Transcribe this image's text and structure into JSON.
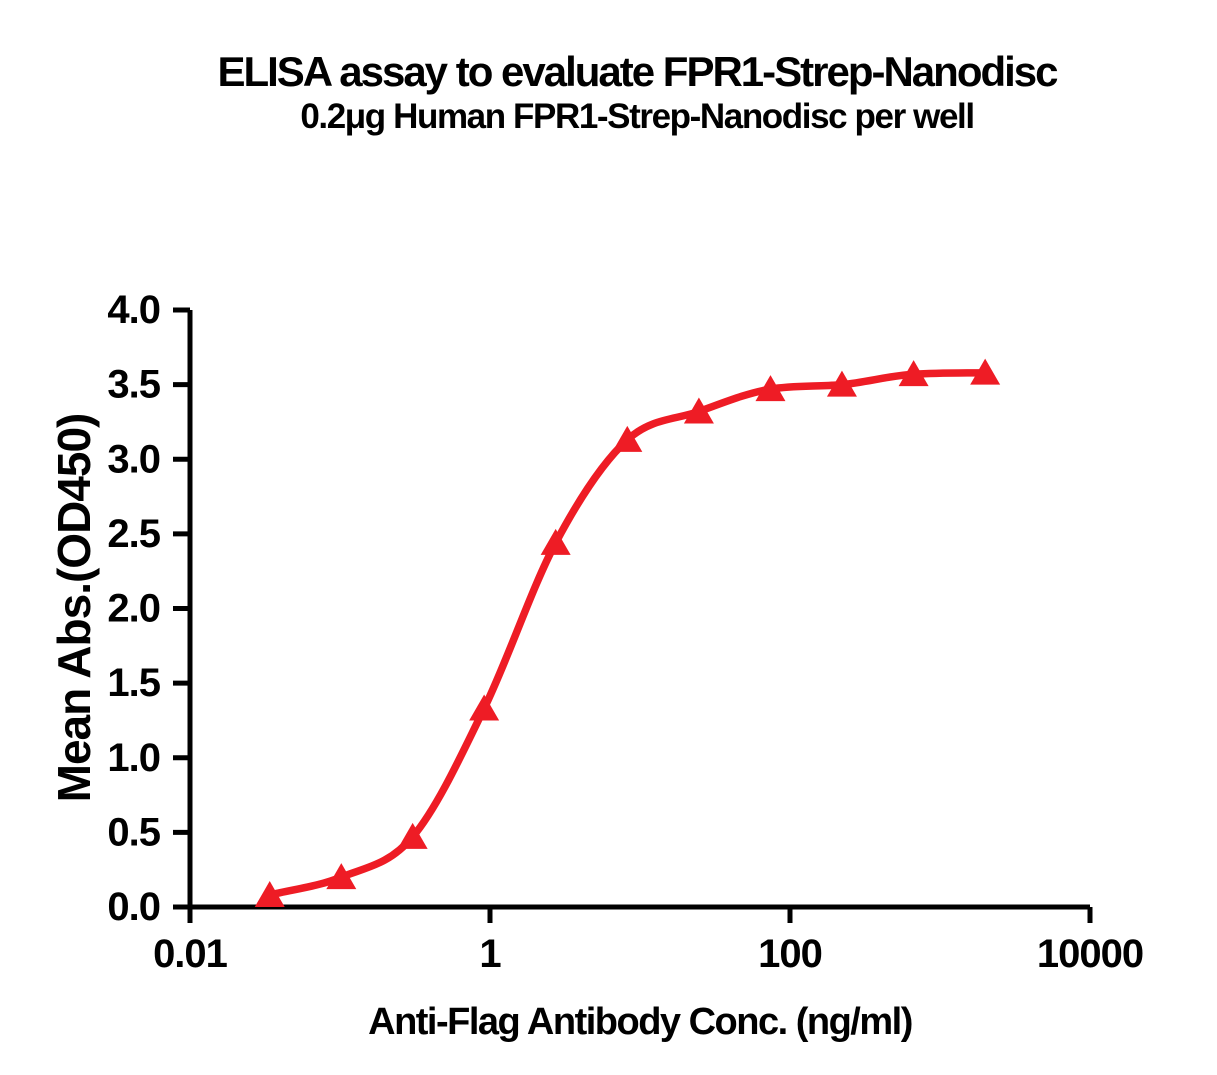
{
  "header": {
    "title": "ELISA assay to evaluate FPR1-Strep-Nanodisc",
    "subtitle": "0.2μg Human FPR1-Strep-Nanodisc per well"
  },
  "chart_data": {
    "type": "line",
    "title": "ELISA assay to evaluate FPR1-Strep-Nanodisc",
    "subtitle": "0.2μg Human FPR1-Strep-Nanodisc per well",
    "xlabel": "Anti-Flag Antibody Conc. (ng/ml)",
    "ylabel": "Mean Abs.(OD450)",
    "xscale": "log",
    "xlim": [
      0.01,
      10000
    ],
    "ylim": [
      0.0,
      4.0
    ],
    "xticks": {
      "values": [
        0.01,
        1,
        100,
        10000
      ],
      "labels": [
        "0.01",
        "1",
        "100",
        "10000"
      ]
    },
    "yticks": {
      "values": [
        0,
        0.5,
        1.0,
        1.5,
        2.0,
        2.5,
        3.0,
        3.5,
        4.0
      ],
      "labels": [
        "0.0",
        "0.5",
        "1.0",
        "1.5",
        "2.0",
        "2.5",
        "3.0",
        "3.5",
        "4.0"
      ]
    },
    "grid": false,
    "legend": "none",
    "series": [
      {
        "name": "Human FPR1-Strep-Nanodisc",
        "marker": "triangle-up",
        "curve": "sigmoidal-fit",
        "color": "#EE1C25",
        "x": [
          0.034,
          0.102,
          0.305,
          0.914,
          2.74,
          8.23,
          24.7,
          74.1,
          222,
          667,
          2000
        ],
        "y": [
          0.08,
          0.2,
          0.47,
          1.33,
          2.44,
          3.13,
          3.32,
          3.47,
          3.5,
          3.57,
          3.58
        ]
      }
    ]
  },
  "style": {
    "curve_color": "#EE1C25",
    "axis_color": "#000000",
    "text_color": "#000000",
    "background": "#FFFFFF"
  }
}
